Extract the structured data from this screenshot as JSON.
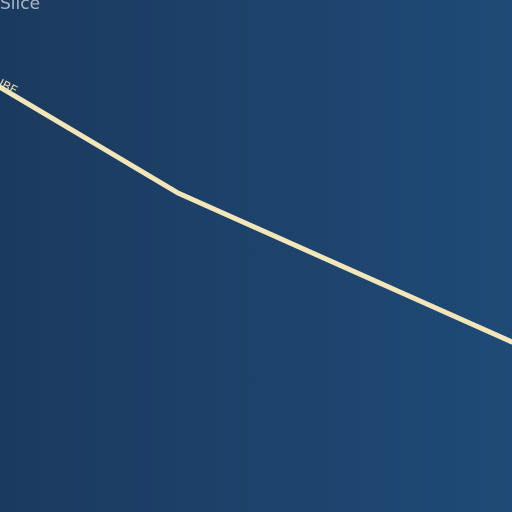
{
  "map": {
    "place_label": "Slice",
    "road_label": "UBE",
    "colors": {
      "background_left": "#1b3a5f",
      "background_right": "#1f4a77",
      "road": "#f3e6b8",
      "label": "#aab6c3"
    }
  }
}
